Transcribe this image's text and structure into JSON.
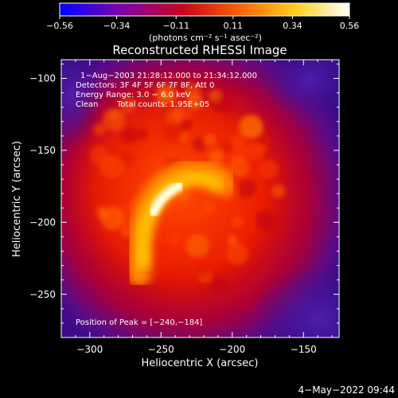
{
  "chart_data": {
    "type": "heatmap",
    "title": "Reconstructed RHESSI Image",
    "xlabel": "Heliocentric X (arcsec)",
    "ylabel": "Heliocentric Y (arcsec)",
    "xlim": [
      -320,
      -125
    ],
    "ylim": [
      -280,
      -87
    ],
    "xticks": [
      -300,
      -250,
      -200,
      -150
    ],
    "yticks": [
      -100,
      -150,
      -200,
      -250
    ],
    "colorbar": {
      "min": -0.56,
      "max": 0.56,
      "ticks": [
        -0.56,
        -0.34,
        -0.11,
        0.11,
        0.34,
        0.56
      ],
      "tick_labels": [
        "−0.56",
        "−0.34",
        "−0.11",
        "0.11",
        "0.34",
        "0.56"
      ],
      "colors": [
        "#0000ff",
        "#7a00b4",
        "#c8001e",
        "#ff6000",
        "#ffd21e",
        "#ffffff"
      ]
    },
    "peak": {
      "x": -240,
      "y": -184
    },
    "annotations": {
      "time_range": "1−Aug−2003 21:28:12.000 to 21:34:12.000",
      "detectors": "Detectors: 3F 4F 5F 6F 7F 8F, Att 0",
      "energy": "Energy Range: 3.0 − 6.0 keV",
      "algorithm": "Clean",
      "counts": "Total counts: 1.95E+05",
      "peak_text": "Position of Peak = [−240,−184]"
    }
  },
  "labels": {
    "x_tick_labels": [
      "−300",
      "−250",
      "−200",
      "−150"
    ],
    "y_tick_labels": [
      "−100",
      "−150",
      "−200",
      "−250"
    ],
    "cb_unit": "(photons cm⁻² s⁻¹ asec⁻²)",
    "date_stamp": "4−May−2022 09:44"
  }
}
